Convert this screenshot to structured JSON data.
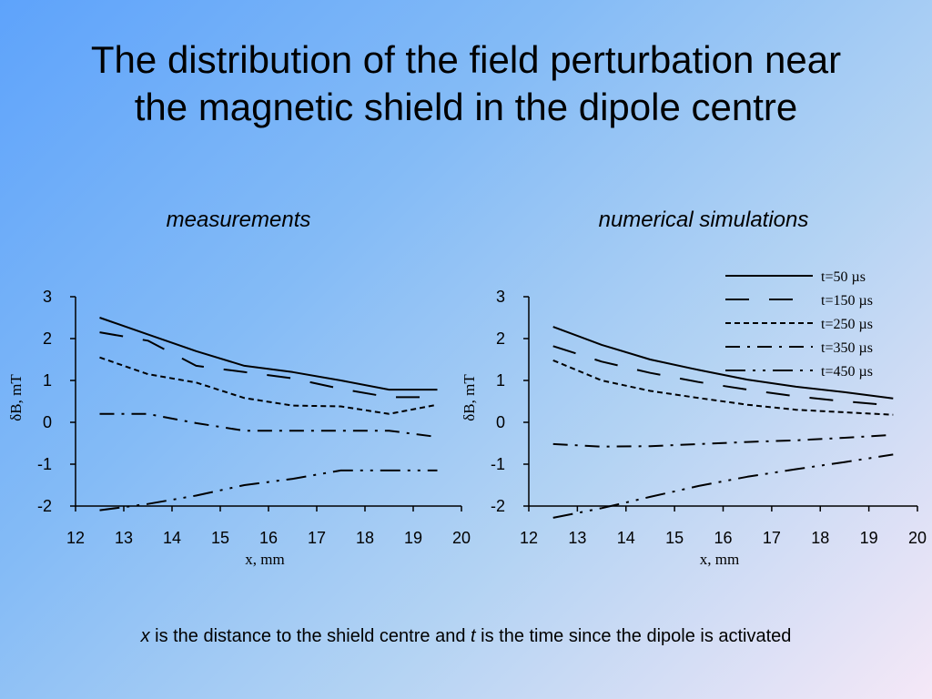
{
  "title": {
    "line1": "The distribution of the field perturbation near",
    "line2": "the magnetic shield in the dipole centre"
  },
  "caption": {
    "x_var": "x",
    "part1": " is the distance to the shield centre and ",
    "t_var": "t",
    "part2": " is the time since the dipole is activated"
  },
  "chart_data": [
    {
      "type": "line",
      "title": "measurements",
      "xlabel": "x, mm",
      "ylabel": "δB, mT",
      "xlim": [
        12,
        20
      ],
      "ylim": [
        -2,
        3
      ],
      "xticks": [
        12,
        13,
        14,
        15,
        16,
        17,
        18,
        19,
        20
      ],
      "yticks": [
        -2,
        -1,
        0,
        1,
        2,
        3
      ],
      "grid": false,
      "series": [
        {
          "x": [
            12.5,
            13.5,
            14.5,
            15.5,
            16.5,
            17.5,
            18.5,
            19.5
          ],
          "values": [
            2.5,
            2.1,
            1.7,
            1.35,
            1.2,
            1.0,
            0.78,
            0.78
          ],
          "style": "solid"
        },
        {
          "x": [
            12.5,
            13.5,
            14.5,
            15.5,
            16.5,
            17.5,
            18.5,
            19.5
          ],
          "values": [
            2.15,
            1.95,
            1.35,
            1.2,
            1.05,
            0.8,
            0.6,
            0.6
          ],
          "style": "longdash"
        },
        {
          "x": [
            12.5,
            13.5,
            14.5,
            15.5,
            16.5,
            17.5,
            18.5,
            19.5
          ],
          "values": [
            1.55,
            1.15,
            0.95,
            0.58,
            0.4,
            0.38,
            0.2,
            0.42
          ],
          "style": "shortdash"
        },
        {
          "x": [
            12.5,
            13.5,
            14.5,
            15.5,
            16.5,
            17.5,
            18.5,
            19.5
          ],
          "values": [
            0.2,
            0.2,
            -0.02,
            -0.2,
            -0.2,
            -0.2,
            -0.2,
            -0.35
          ],
          "style": "dashdot"
        },
        {
          "x": [
            12.5,
            13.5,
            14.5,
            15.5,
            16.5,
            17.5,
            18.5,
            19.5
          ],
          "values": [
            -2.1,
            -1.95,
            -1.75,
            -1.5,
            -1.35,
            -1.15,
            -1.15,
            -1.15
          ],
          "style": "dashdotdot"
        }
      ]
    },
    {
      "type": "line",
      "title": "numerical simulations",
      "xlabel": "x, mm",
      "ylabel": "δB, mT",
      "xlim": [
        12,
        20
      ],
      "ylim": [
        -2,
        3
      ],
      "xticks": [
        12,
        13,
        14,
        15,
        16,
        17,
        18,
        19,
        20
      ],
      "yticks": [
        -2,
        -1,
        0,
        1,
        2,
        3
      ],
      "grid": false,
      "legend": "top-right",
      "series": [
        {
          "name": "t=50 µs",
          "x": [
            12.5,
            13.5,
            14.5,
            15.5,
            16.5,
            17.5,
            18.5,
            19.5
          ],
          "values": [
            2.28,
            1.85,
            1.5,
            1.25,
            1.02,
            0.85,
            0.72,
            0.57
          ],
          "style": "solid"
        },
        {
          "name": "t=150 µs",
          "x": [
            12.5,
            13.5,
            14.5,
            15.5,
            16.5,
            17.5,
            18.5,
            19.5
          ],
          "values": [
            1.82,
            1.45,
            1.18,
            0.96,
            0.78,
            0.62,
            0.5,
            0.4
          ],
          "style": "longdash"
        },
        {
          "name": "t=250 µs",
          "x": [
            12.5,
            13.5,
            14.5,
            15.5,
            16.5,
            17.5,
            18.5,
            19.5
          ],
          "values": [
            1.48,
            1.0,
            0.75,
            0.58,
            0.42,
            0.3,
            0.24,
            0.18
          ],
          "style": "shortdash"
        },
        {
          "name": "t=350 µs",
          "x": [
            12.5,
            13.5,
            14.5,
            15.5,
            16.5,
            17.5,
            18.5,
            19.5
          ],
          "values": [
            -0.52,
            -0.58,
            -0.57,
            -0.52,
            -0.47,
            -0.43,
            -0.37,
            -0.3
          ],
          "style": "dashdot"
        },
        {
          "name": "t=450 µs",
          "x": [
            12.5,
            13.5,
            14.5,
            15.5,
            16.5,
            17.5,
            18.5,
            19.5
          ],
          "values": [
            -2.28,
            -2.05,
            -1.78,
            -1.52,
            -1.3,
            -1.12,
            -0.95,
            -0.77
          ],
          "style": "dashdotdot"
        }
      ]
    }
  ]
}
